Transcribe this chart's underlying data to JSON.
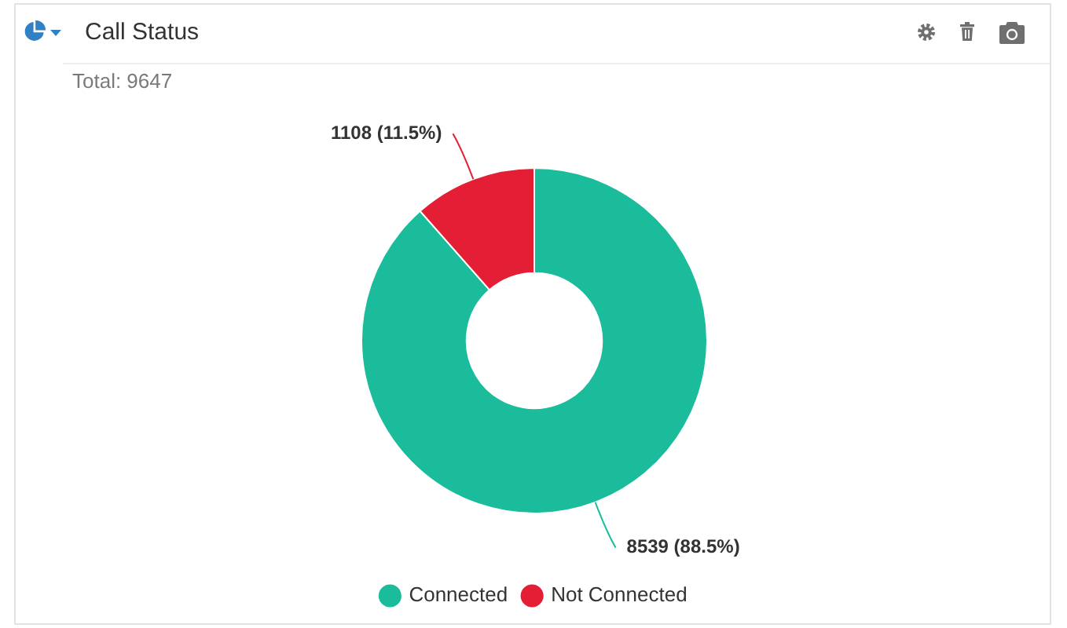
{
  "chart_data": {
    "type": "donut",
    "title": "Call Status",
    "categories": [
      "Connected",
      "Not Connected"
    ],
    "values": [
      8539,
      1108
    ],
    "colors": [
      "#1bbc9b",
      "#e41e34"
    ],
    "value_labels": [
      "8539 (88.5%)",
      "1108 (11.5%)"
    ],
    "annotations": [
      "Total: 9647"
    ],
    "legend": "bottom"
  }
}
